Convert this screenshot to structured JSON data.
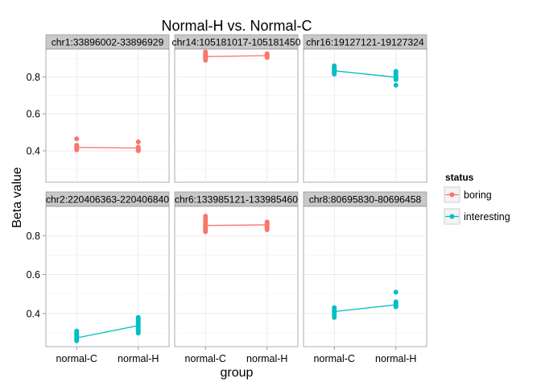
{
  "chart_data": {
    "type": "scatter",
    "title": "Normal-H vs. Normal-C",
    "xlabel": "group",
    "ylabel": "Beta value",
    "categories": [
      "normal-C",
      "normal-H"
    ],
    "ylim": [
      0.23,
      0.95
    ],
    "yticks": [
      0.4,
      0.6,
      0.8
    ],
    "grid": true,
    "legend": {
      "title": "status",
      "position": "right",
      "entries": [
        {
          "label": "boring",
          "color": "#F8766D"
        },
        {
          "label": "interesting",
          "color": "#00BFC4"
        }
      ]
    },
    "panels": [
      {
        "title": "chr1:33896002-33896929",
        "status": "boring",
        "mean": [
          0.418,
          0.415
        ],
        "points": {
          "normal-C": [
            0.465,
            0.43,
            0.425,
            0.42,
            0.415,
            0.41,
            0.405
          ],
          "normal-H": [
            0.448,
            0.42,
            0.415,
            0.41,
            0.405,
            0.4
          ]
        }
      },
      {
        "title": "chr14:105181017-105181450",
        "status": "boring",
        "mean": [
          0.91,
          0.915
        ],
        "points": {
          "normal-C": [
            0.935,
            0.925,
            0.92,
            0.915,
            0.91,
            0.905,
            0.9,
            0.89
          ],
          "normal-H": [
            0.925,
            0.92,
            0.915,
            0.91,
            0.905
          ]
        }
      },
      {
        "title": "chr16:19127121-19127324",
        "status": "interesting",
        "mean": [
          0.833,
          0.798
        ],
        "points": {
          "normal-C": [
            0.86,
            0.85,
            0.845,
            0.84,
            0.835,
            0.83,
            0.825,
            0.82,
            0.815
          ],
          "normal-H": [
            0.83,
            0.82,
            0.81,
            0.8,
            0.795,
            0.79,
            0.785,
            0.755
          ]
        }
      },
      {
        "title": "chr2:220406363-220406840",
        "status": "interesting",
        "mean": [
          0.275,
          0.338
        ],
        "points": {
          "normal-C": [
            0.31,
            0.3,
            0.29,
            0.285,
            0.28,
            0.27,
            0.265,
            0.26
          ],
          "normal-H": [
            0.38,
            0.37,
            0.36,
            0.35,
            0.34,
            0.33,
            0.32,
            0.31,
            0.3
          ]
        }
      },
      {
        "title": "chr6:133985121-133985460",
        "status": "boring",
        "mean": [
          0.852,
          0.855
        ],
        "points": {
          "normal-C": [
            0.9,
            0.885,
            0.875,
            0.865,
            0.855,
            0.85,
            0.845,
            0.835,
            0.83,
            0.82
          ],
          "normal-H": [
            0.87,
            0.865,
            0.86,
            0.855,
            0.85,
            0.845,
            0.84,
            0.83
          ]
        }
      },
      {
        "title": "chr8:80695830-80696458",
        "status": "interesting",
        "mean": [
          0.41,
          0.445
        ],
        "points": {
          "normal-C": [
            0.43,
            0.42,
            0.41,
            0.4,
            0.39,
            0.38
          ],
          "normal-H": [
            0.51,
            0.46,
            0.455,
            0.45,
            0.445,
            0.44,
            0.435
          ]
        }
      }
    ]
  }
}
